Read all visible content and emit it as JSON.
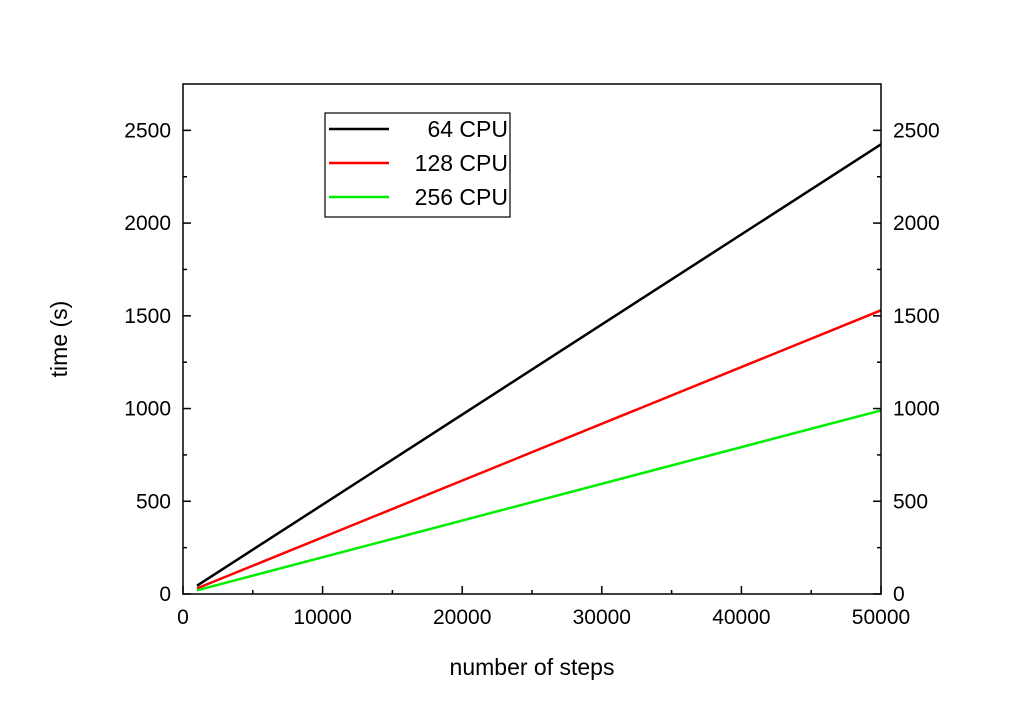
{
  "chart_data": {
    "type": "line",
    "xlabel": "number of steps",
    "ylabel": "time (s)",
    "xlim": [
      0,
      50000
    ],
    "ylim": [
      0,
      2750
    ],
    "x_ticks": [
      0,
      10000,
      20000,
      30000,
      40000,
      50000
    ],
    "y_ticks": [
      0,
      500,
      1000,
      1500,
      2000,
      2500
    ],
    "right_axis_ticks": true,
    "grid": false,
    "legend_position": "top-left",
    "series": [
      {
        "name": "64 CPU",
        "color": "#000000",
        "x": [
          1000,
          50000
        ],
        "y": [
          45,
          2425
        ]
      },
      {
        "name": "128 CPU",
        "color": "#ff0000",
        "x": [
          1000,
          50000
        ],
        "y": [
          30,
          1530
        ]
      },
      {
        "name": "256 CPU",
        "color": "#00ee00",
        "x": [
          1000,
          50000
        ],
        "y": [
          20,
          990
        ]
      }
    ]
  }
}
